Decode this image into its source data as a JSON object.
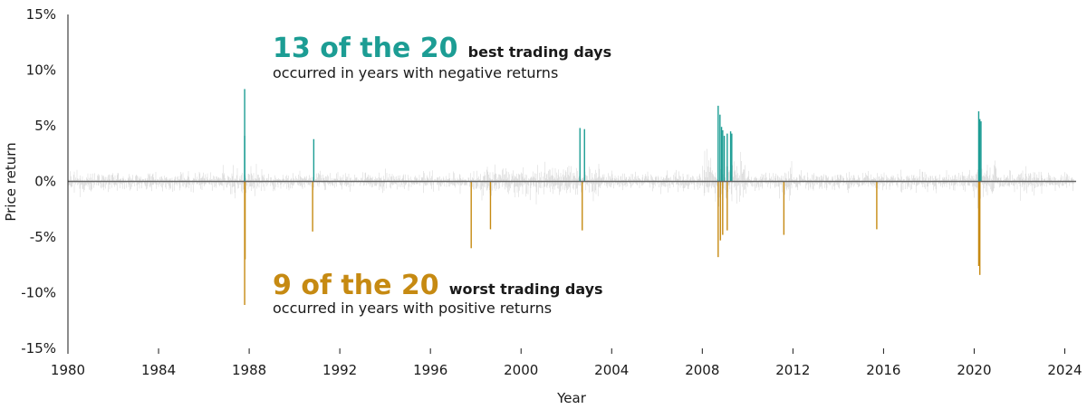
{
  "chart_data": {
    "type": "bar",
    "title": "",
    "xlabel": "Year",
    "ylabel": "Price return",
    "xlim": [
      1980,
      2024.5
    ],
    "ylim": [
      -15,
      15
    ],
    "x_ticks": [
      1980,
      1984,
      1988,
      1992,
      1996,
      2000,
      2004,
      2008,
      2012,
      2016,
      2020,
      2024
    ],
    "x_tick_labels": [
      "1980",
      "1984",
      "1988",
      "1992",
      "1996",
      "2000",
      "2004",
      "2008",
      "2012",
      "2016",
      "2020",
      "2024"
    ],
    "y_ticks": [
      -15,
      -10,
      -5,
      0,
      5,
      10,
      15
    ],
    "y_tick_labels": [
      "-15%",
      "-10%",
      "-5%",
      "0%",
      "5%",
      "10%",
      "15%"
    ],
    "grid": false,
    "series": [
      {
        "name": "",
        "values": [
          [
            1987.8,
            8.3
          ],
          [
            1987.8,
            4.1
          ],
          [
            1990.85,
            3.8
          ],
          [
            2002.6,
            4.8
          ],
          [
            2002.8,
            4.7
          ],
          [
            2008.7,
            6.8
          ],
          [
            2008.78,
            6.0
          ],
          [
            2008.85,
            4.9
          ],
          [
            2008.9,
            4.6
          ],
          [
            2008.97,
            4.1
          ],
          [
            2009.1,
            4.3
          ],
          [
            2009.25,
            4.5
          ],
          [
            2009.3,
            4.3
          ],
          [
            2020.2,
            6.3
          ],
          [
            2020.25,
            5.6
          ],
          [
            2020.3,
            5.4
          ]
        ]
      },
      {
        "name": "",
        "values": [
          [
            1987.8,
            -11.1
          ],
          [
            1987.82,
            -7.0
          ],
          [
            1990.8,
            -4.5
          ],
          [
            1997.8,
            -6.0
          ],
          [
            1998.65,
            -4.3
          ],
          [
            2002.7,
            -4.4
          ],
          [
            2008.7,
            -6.8
          ],
          [
            2008.8,
            -5.3
          ],
          [
            2008.9,
            -4.8
          ],
          [
            2009.1,
            -4.4
          ],
          [
            2011.6,
            -4.8
          ],
          [
            2015.7,
            -4.3
          ],
          [
            2020.2,
            -7.6
          ],
          [
            2020.25,
            -8.4
          ]
        ]
      }
    ],
    "colors": {
      "best": "#1c9d94",
      "worst": "#c68a12",
      "noise": "#d9d9d9",
      "zero_line": "#666666",
      "axis": "#1a1a1a"
    },
    "annotations": {
      "best": {
        "big": "13 of the 20",
        "mid": "best trading days",
        "sub": "occurred in years with negative returns"
      },
      "worst": {
        "big": "9 of the 20",
        "mid": "worst trading days",
        "sub": "occurred in years with positive returns"
      }
    }
  }
}
